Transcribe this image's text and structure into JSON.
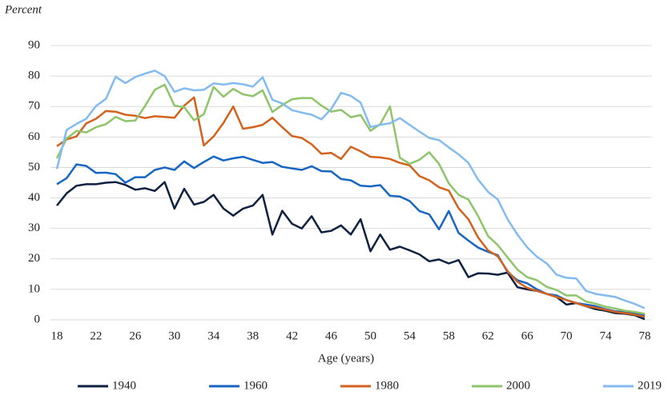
{
  "chart_data": {
    "type": "line",
    "title": "Percent",
    "x_label": "Age (years)",
    "x": [
      18,
      19,
      20,
      21,
      22,
      23,
      24,
      25,
      26,
      27,
      28,
      29,
      30,
      31,
      32,
      33,
      34,
      35,
      36,
      37,
      38,
      39,
      40,
      41,
      42,
      43,
      44,
      45,
      46,
      47,
      48,
      49,
      50,
      51,
      52,
      53,
      54,
      55,
      56,
      57,
      58,
      59,
      60,
      61,
      62,
      63,
      64,
      65,
      66,
      67,
      68,
      69,
      70,
      71,
      72,
      73,
      74,
      75,
      76,
      77,
      78
    ],
    "xlim": [
      18,
      78
    ],
    "xticks": [
      18,
      22,
      26,
      30,
      34,
      38,
      42,
      46,
      50,
      54,
      58,
      62,
      66,
      70,
      74,
      78
    ],
    "ylim": [
      0,
      90
    ],
    "yticks": [
      0,
      10,
      20,
      30,
      40,
      50,
      60,
      70,
      80,
      90
    ],
    "grid": true,
    "legend": "bottom",
    "series": [
      {
        "name": "1940",
        "color": "#0e2140",
        "values": [
          37.5,
          41.5,
          44,
          44.5,
          44.5,
          45,
          45.2,
          44.3,
          42.7,
          43.2,
          42.3,
          45.2,
          36.5,
          43,
          37.8,
          38.7,
          41,
          36.5,
          34.2,
          36.5,
          37.5,
          41,
          28,
          35.8,
          31.5,
          30,
          34,
          28.7,
          29.2,
          31,
          28,
          33,
          22.5,
          28,
          23,
          24,
          22.8,
          21.5,
          19.2,
          19.8,
          18.5,
          19.6,
          14,
          15.3,
          15.2,
          14.8,
          15.5,
          10.7,
          10,
          9.5,
          8.5,
          7.5,
          5,
          5.5,
          4.5,
          3.5,
          3,
          2.2,
          2,
          1.5,
          0.2
        ]
      },
      {
        "name": "1960",
        "color": "#1866c4",
        "values": [
          44.5,
          46.5,
          51,
          50.5,
          48.2,
          48.3,
          47.8,
          45,
          46.8,
          46.8,
          49.2,
          50,
          49.2,
          52,
          49.8,
          51.8,
          53.6,
          52.3,
          53,
          53.5,
          52.5,
          51.5,
          51.8,
          50.2,
          49.7,
          49.2,
          50.4,
          48.8,
          48.7,
          46.2,
          45.8,
          44,
          43.8,
          44.2,
          40.7,
          40.5,
          39,
          35.7,
          34.6,
          29.7,
          35.7,
          28.5,
          26,
          23.7,
          22.3,
          21.2,
          15.7,
          13,
          12,
          10,
          8.5,
          8,
          6.5,
          5.5,
          5,
          4.5,
          3.5,
          2.8,
          2.5,
          2,
          1.5
        ]
      },
      {
        "name": "1980",
        "color": "#d2621d",
        "values": [
          57,
          59.2,
          60.2,
          64.5,
          66,
          68.5,
          68.3,
          67.3,
          67,
          66.2,
          66.8,
          66.6,
          66.3,
          70.3,
          73,
          57.2,
          60.2,
          64.6,
          70,
          62.7,
          63.2,
          64,
          66.3,
          63.2,
          60.3,
          59.7,
          57.6,
          54.5,
          54.8,
          52.8,
          56.8,
          55.3,
          53.5,
          53.3,
          52.8,
          51.5,
          50.7,
          47.2,
          45.8,
          43.5,
          42.4,
          36.6,
          33,
          27,
          22.8,
          20.8,
          16,
          12.5,
          10.5,
          9.5,
          8.5,
          7.5,
          6.5,
          5.5,
          4.5,
          4,
          3.3,
          2.6,
          2.2,
          1.7,
          1
        ]
      },
      {
        "name": "2000",
        "color": "#8fc46a",
        "values": [
          53,
          59.5,
          62,
          61.5,
          63.2,
          64.2,
          66.6,
          65.2,
          65.4,
          70.2,
          75.5,
          77.2,
          70.3,
          69.8,
          65.5,
          67.5,
          76.4,
          73.2,
          75.8,
          74,
          73.4,
          75.3,
          68.2,
          70.5,
          72.4,
          72.8,
          72.8,
          70.3,
          68.3,
          68.9,
          66.5,
          67.2,
          62,
          64.2,
          70,
          53.2,
          51.2,
          52.5,
          55,
          51.2,
          44.8,
          41,
          39.5,
          34,
          27.5,
          24.5,
          20.5,
          16.5,
          14,
          13,
          10.8,
          9.8,
          8,
          8,
          6,
          5.3,
          4.3,
          3.7,
          3,
          2.6,
          2
        ]
      },
      {
        "name": "2019",
        "color": "#83bbf0",
        "values": [
          49.5,
          62.3,
          64.3,
          66,
          70.2,
          72.5,
          79.8,
          77.7,
          79.7,
          80.8,
          81.8,
          80,
          74.8,
          76,
          75.3,
          75.5,
          77.6,
          77.2,
          77.7,
          77.3,
          76.5,
          79.6,
          72.2,
          71,
          68.8,
          68,
          67.3,
          65.8,
          69.2,
          74.5,
          73.5,
          71.3,
          63.3,
          64,
          64.5,
          66.2,
          64,
          61.8,
          59.7,
          59,
          56.6,
          54.3,
          51.5,
          46,
          42,
          39.5,
          33,
          28,
          23.8,
          20.7,
          18.5,
          14.8,
          13.8,
          13.6,
          9.5,
          8.5,
          8,
          7.5,
          6.3,
          5.2,
          3.8
        ]
      }
    ]
  }
}
